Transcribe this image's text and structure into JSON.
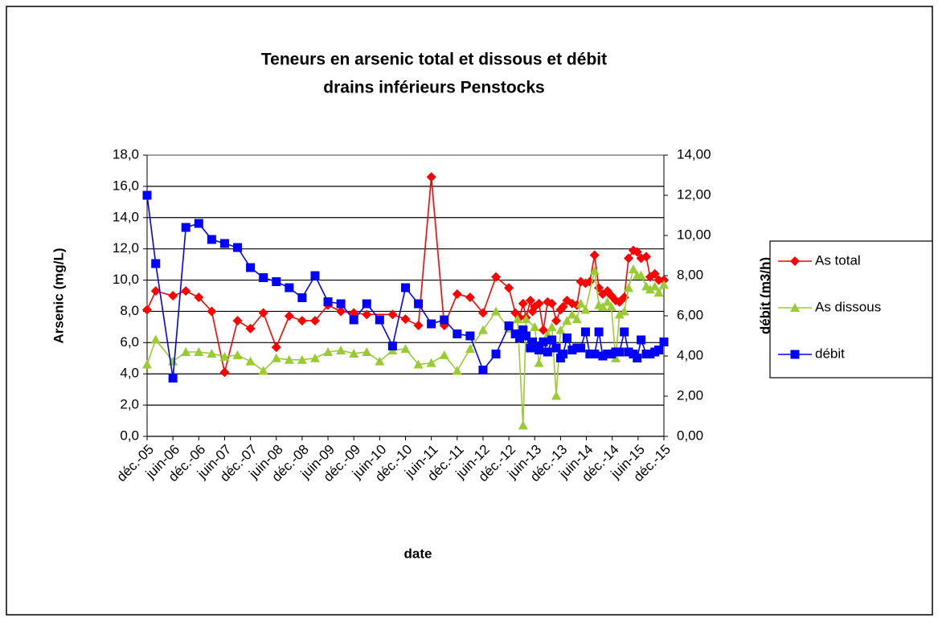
{
  "chart_data": {
    "type": "line",
    "title": [
      "Teneurs en arsenic total et dissous et débit",
      "drains inférieurs Penstocks"
    ],
    "xlabel": "date",
    "ylabel": "Arsenic (mg/L)",
    "y2label": "débit (m3/h)",
    "xlim": [
      0,
      120
    ],
    "xticks": [
      {
        "value": 0,
        "label": "déc.-05"
      },
      {
        "value": 6,
        "label": "juin-06"
      },
      {
        "value": 12,
        "label": "déc.-06"
      },
      {
        "value": 18,
        "label": "juin-07"
      },
      {
        "value": 24,
        "label": "déc.-07"
      },
      {
        "value": 30,
        "label": "juin-08"
      },
      {
        "value": 36,
        "label": "déc.-08"
      },
      {
        "value": 42,
        "label": "juin-09"
      },
      {
        "value": 48,
        "label": "déc.-09"
      },
      {
        "value": 54,
        "label": "juin-10"
      },
      {
        "value": 60,
        "label": "déc.-10"
      },
      {
        "value": 66,
        "label": "juin-11"
      },
      {
        "value": 72,
        "label": "déc.-11"
      },
      {
        "value": 78,
        "label": "juin-12"
      },
      {
        "value": 84,
        "label": "déc.-12"
      },
      {
        "value": 90,
        "label": "juin-13"
      },
      {
        "value": 96,
        "label": "déc.-13"
      },
      {
        "value": 102,
        "label": "juin-14"
      },
      {
        "value": 108,
        "label": "déc.-14"
      },
      {
        "value": 114,
        "label": "juin-15"
      },
      {
        "value": 120,
        "label": "déc.-15"
      }
    ],
    "ylim": [
      0,
      18
    ],
    "yticks": [
      {
        "value": 0,
        "label": "0,0"
      },
      {
        "value": 2,
        "label": "2,0"
      },
      {
        "value": 4,
        "label": "4,0"
      },
      {
        "value": 6,
        "label": "6,0"
      },
      {
        "value": 8,
        "label": "8,0"
      },
      {
        "value": 10,
        "label": "10,0"
      },
      {
        "value": 12,
        "label": "12,0"
      },
      {
        "value": 14,
        "label": "14,0"
      },
      {
        "value": 16,
        "label": "16,0"
      },
      {
        "value": 18,
        "label": "18,0"
      }
    ],
    "y2lim": [
      0,
      14
    ],
    "y2ticks": [
      {
        "value": 0,
        "label": "0,00"
      },
      {
        "value": 2,
        "label": "2,00"
      },
      {
        "value": 4,
        "label": "4,00"
      },
      {
        "value": 6,
        "label": "6,00"
      },
      {
        "value": 8,
        "label": "8,00"
      },
      {
        "value": 10,
        "label": "10,00"
      },
      {
        "value": 12,
        "label": "12,00"
      },
      {
        "value": 14,
        "label": "14,00"
      }
    ],
    "grid": true,
    "legend": "right",
    "series": [
      {
        "name": "As total",
        "color": "#ff0000",
        "marker": "diamond",
        "x": [
          0,
          2,
          6,
          9,
          12,
          15,
          18,
          21,
          24,
          27,
          30,
          33,
          36,
          39,
          42,
          45,
          48,
          51,
          57,
          60,
          63,
          66,
          69,
          72,
          75,
          78,
          81,
          84,
          85.5,
          86.5,
          87.3,
          88,
          89,
          89.5,
          90,
          91,
          92,
          93,
          94,
          95,
          96,
          96.6,
          97.5,
          98.7,
          99.8,
          100.7,
          101.8,
          102.8,
          103.9,
          104.9,
          105.8,
          106.9,
          107.8,
          108.8,
          109.7,
          110.8,
          111.8,
          112.9,
          113.8,
          114.7,
          115.9,
          116.8,
          117.9,
          118.8,
          120
        ],
        "values": [
          8.1,
          9.3,
          9.0,
          9.3,
          8.9,
          8.0,
          4.1,
          7.4,
          6.9,
          7.9,
          5.7,
          7.7,
          7.4,
          7.4,
          8.4,
          8.0,
          7.9,
          7.8,
          7.8,
          7.5,
          7.1,
          16.6,
          7.1,
          9.1,
          8.9,
          7.9,
          10.2,
          9.5,
          7.9,
          7.6,
          8.5,
          7.6,
          8.7,
          8.0,
          8.3,
          8.5,
          6.8,
          8.6,
          8.5,
          7.4,
          8.1,
          8.3,
          8.7,
          8.5,
          8.4,
          9.9,
          9.8,
          9.9,
          11.6,
          9.5,
          9.1,
          9.3,
          9.0,
          8.7,
          8.6,
          8.9,
          11.4,
          11.9,
          11.8,
          11.4,
          11.5,
          10.2,
          10.4,
          10.0,
          10.0
        ]
      },
      {
        "name": "As dissous",
        "color": "#99cc33",
        "marker": "triangle",
        "x": [
          0,
          2,
          6,
          9,
          12,
          15,
          18,
          21,
          24,
          27,
          30,
          33,
          36,
          39,
          42,
          45,
          48,
          51,
          54,
          57,
          60,
          63,
          66,
          69,
          72,
          75,
          78,
          81,
          84,
          86,
          87.3,
          88,
          90,
          91,
          92,
          93,
          94,
          95,
          96,
          97.5,
          98.7,
          99.8,
          100.7,
          101.8,
          103.9,
          104.9,
          105.8,
          106.9,
          107.8,
          108.8,
          109.7,
          110.8,
          111.8,
          112.9,
          113.8,
          114.7,
          115.9,
          116.8,
          117.9,
          118.8,
          120
        ],
        "values": [
          4.6,
          6.2,
          4.8,
          5.4,
          5.4,
          5.3,
          5.1,
          5.2,
          4.8,
          4.2,
          5.0,
          4.9,
          4.9,
          5.0,
          5.4,
          5.5,
          5.3,
          5.4,
          4.8,
          5.5,
          5.6,
          4.6,
          4.7,
          5.2,
          4.2,
          5.6,
          6.8,
          8.0,
          6.9,
          7.5,
          0.7,
          7.5,
          7.0,
          4.7,
          6.0,
          6.5,
          7.0,
          2.6,
          6.8,
          7.4,
          7.8,
          7.5,
          8.5,
          8.1,
          10.6,
          8.4,
          8.3,
          8.6,
          8.3,
          5.0,
          7.8,
          8.0,
          9.5,
          10.7,
          10.3,
          10.3,
          9.6,
          9.4,
          9.6,
          9.2,
          9.7
        ]
      },
      {
        "name": "débit",
        "color": "#0000ff",
        "marker": "square",
        "axis": "y2",
        "x": [
          0,
          2,
          6,
          9,
          12,
          15,
          18,
          21,
          24,
          27,
          30,
          33,
          36,
          39,
          42,
          45,
          48,
          51,
          54,
          57,
          60,
          63,
          66,
          69,
          72,
          75,
          78,
          81,
          84,
          85.5,
          86.5,
          87.3,
          88,
          89,
          89.5,
          90,
          91,
          92,
          93,
          94,
          95,
          96,
          96.6,
          97.5,
          98.7,
          99.8,
          100.7,
          101.8,
          102.8,
          103.9,
          104.9,
          105.8,
          106.9,
          107.8,
          108.8,
          109.7,
          110.8,
          111.8,
          112.9,
          113.8,
          114.7,
          115.9,
          116.8,
          117.9,
          118.8,
          120
        ],
        "values": [
          12.0,
          8.6,
          2.9,
          10.4,
          10.6,
          9.8,
          9.6,
          9.4,
          8.4,
          7.9,
          7.7,
          7.4,
          6.9,
          8.0,
          6.7,
          6.6,
          5.8,
          6.6,
          5.8,
          4.5,
          7.4,
          6.6,
          5.6,
          5.8,
          5.1,
          5.0,
          3.3,
          4.1,
          5.5,
          5.1,
          4.9,
          5.3,
          5.0,
          4.4,
          4.7,
          4.5,
          4.3,
          4.7,
          4.2,
          4.8,
          4.4,
          3.9,
          4.1,
          4.9,
          4.3,
          4.4,
          4.4,
          5.2,
          4.1,
          4.1,
          5.2,
          4.0,
          4.1,
          4.1,
          4.2,
          4.2,
          5.2,
          4.2,
          4.1,
          3.9,
          4.8,
          4.1,
          4.1,
          4.2,
          4.3,
          4.7
        ]
      }
    ]
  }
}
